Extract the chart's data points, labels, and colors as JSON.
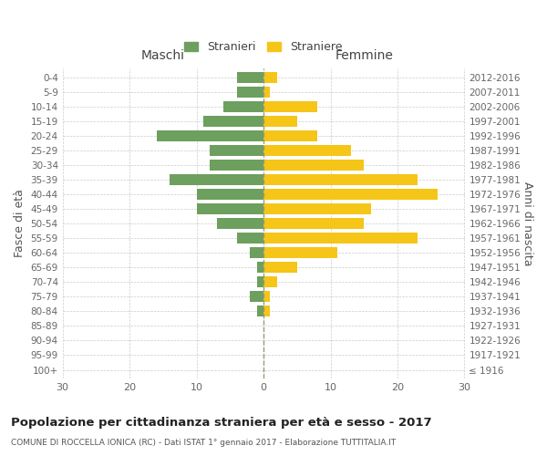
{
  "age_groups": [
    "100+",
    "95-99",
    "90-94",
    "85-89",
    "80-84",
    "75-79",
    "70-74",
    "65-69",
    "60-64",
    "55-59",
    "50-54",
    "45-49",
    "40-44",
    "35-39",
    "30-34",
    "25-29",
    "20-24",
    "15-19",
    "10-14",
    "5-9",
    "0-4"
  ],
  "birth_years": [
    "≤ 1916",
    "1917-1921",
    "1922-1926",
    "1927-1931",
    "1932-1936",
    "1937-1941",
    "1942-1946",
    "1947-1951",
    "1952-1956",
    "1957-1961",
    "1962-1966",
    "1967-1971",
    "1972-1976",
    "1977-1981",
    "1982-1986",
    "1987-1991",
    "1992-1996",
    "1997-2001",
    "2002-2006",
    "2007-2011",
    "2012-2016"
  ],
  "males": [
    0,
    0,
    0,
    0,
    1,
    2,
    1,
    1,
    2,
    4,
    7,
    10,
    10,
    14,
    8,
    8,
    16,
    9,
    6,
    4,
    4
  ],
  "females": [
    0,
    0,
    0,
    0,
    1,
    1,
    2,
    5,
    11,
    23,
    15,
    16,
    26,
    23,
    15,
    13,
    8,
    5,
    8,
    1,
    2
  ],
  "male_color": "#6d9f5e",
  "female_color": "#f5c518",
  "grid_color": "#cccccc",
  "title": "Popolazione per cittadinanza straniera per età e sesso - 2017",
  "subtitle": "COMUNE DI ROCCELLA IONICA (RC) - Dati ISTAT 1° gennaio 2017 - Elaborazione TUTTITALIA.IT",
  "ylabel_left": "Fasce di età",
  "ylabel_right": "Anni di nascita",
  "xlabel_left": "Maschi",
  "xlabel_right": "Femmine",
  "legend_males": "Stranieri",
  "legend_females": "Straniere",
  "xlim": 30,
  "bar_height": 0.75,
  "tick_vals": [
    -30,
    -20,
    -10,
    0,
    10,
    20,
    30
  ]
}
